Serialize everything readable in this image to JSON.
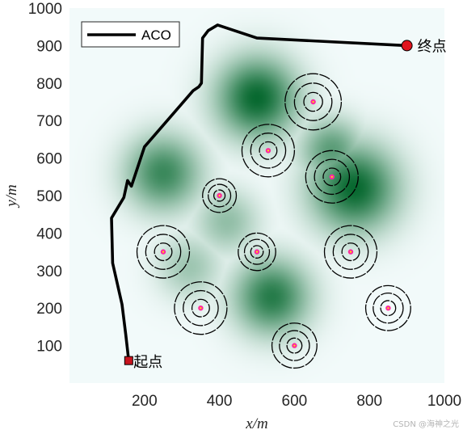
{
  "chart_data": {
    "type": "line",
    "title": "",
    "xlabel": "x/m",
    "ylabel": "y/m",
    "xlim": [
      0,
      1000
    ],
    "ylim": [
      0,
      1000
    ],
    "xticks": [
      200,
      400,
      600,
      800,
      1000
    ],
    "yticks": [
      100,
      200,
      300,
      400,
      500,
      600,
      700,
      800,
      900,
      1000
    ],
    "grid": false,
    "legend_position": "top-left",
    "series": [
      {
        "name": "ACO",
        "color": "#000000",
        "points": [
          [
            158,
            60
          ],
          [
            150,
            130
          ],
          [
            140,
            210
          ],
          [
            115,
            320
          ],
          [
            112,
            440
          ],
          [
            145,
            495
          ],
          [
            155,
            540
          ],
          [
            165,
            525
          ],
          [
            200,
            630
          ],
          [
            330,
            780
          ],
          [
            345,
            790
          ],
          [
            352,
            800
          ],
          [
            355,
            920
          ],
          [
            370,
            940
          ],
          [
            395,
            955
          ],
          [
            500,
            920
          ],
          [
            900,
            900
          ]
        ]
      }
    ],
    "start": {
      "label": "起点",
      "x": 158,
      "y": 60,
      "color": "#c8141e"
    },
    "end": {
      "label": "终点",
      "x": 900,
      "y": 900,
      "color": "#e0141e"
    },
    "terrain_peaks": [
      {
        "x": 500,
        "y": 760,
        "height": 1.0,
        "sigma": 70
      },
      {
        "x": 760,
        "y": 520,
        "height": 1.0,
        "sigma": 75
      },
      {
        "x": 540,
        "y": 230,
        "height": 0.85,
        "sigma": 65
      },
      {
        "x": 250,
        "y": 560,
        "height": 0.75,
        "sigma": 65
      },
      {
        "x": 700,
        "y": 620,
        "height": 0.6,
        "sigma": 55
      },
      {
        "x": 420,
        "y": 430,
        "height": 0.35,
        "sigma": 55
      },
      {
        "x": 320,
        "y": 310,
        "height": 0.3,
        "sigma": 55
      }
    ],
    "obstacles": [
      {
        "x": 650,
        "y": 750,
        "r": 75,
        "rings": 3
      },
      {
        "x": 530,
        "y": 620,
        "r": 70,
        "rings": 3
      },
      {
        "x": 700,
        "y": 550,
        "r": 70,
        "rings": 3
      },
      {
        "x": 400,
        "y": 500,
        "r": 45,
        "rings": 3
      },
      {
        "x": 250,
        "y": 350,
        "r": 70,
        "rings": 3
      },
      {
        "x": 500,
        "y": 350,
        "r": 50,
        "rings": 3
      },
      {
        "x": 750,
        "y": 350,
        "r": 70,
        "rings": 3
      },
      {
        "x": 350,
        "y": 200,
        "r": 70,
        "rings": 3
      },
      {
        "x": 850,
        "y": 200,
        "r": 60,
        "rings": 3
      },
      {
        "x": 600,
        "y": 100,
        "r": 60,
        "rings": 3
      }
    ],
    "obstacle_center_color": "#ff2aa0",
    "obstacle_center_core": "#ffe000"
  },
  "watermark": "CSDN @海神之光"
}
